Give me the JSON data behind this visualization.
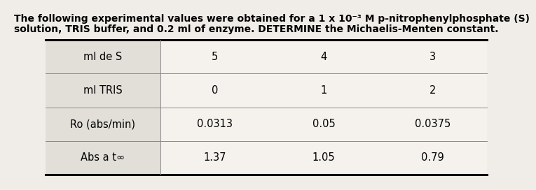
{
  "title_line1": "The following experimental values were obtained for a 1 x 10⁻³ M p-nitrophenylphosphate (S)",
  "title_line2": "solution, TRIS buffer, and 0.2 ml of enzyme. DETERMINE the Michaelis-Menten constant.",
  "row_labels": [
    "ml de S",
    "ml TRIS",
    "Ro (abs/min)",
    "Abs a t∞"
  ],
  "col1": [
    "5",
    "0",
    "0.0313",
    "1.37"
  ],
  "col2": [
    "4",
    "1",
    "0.05",
    "1.05"
  ],
  "col3": [
    "3",
    "2",
    "0.0375",
    "0.79"
  ],
  "bg_color": "#f0ede8",
  "label_col_bg": "#e2dfd9",
  "data_col_bg": "#f5f2ee",
  "title_fontsize": 10.0,
  "cell_fontsize": 10.5,
  "label_fontsize": 10.5
}
